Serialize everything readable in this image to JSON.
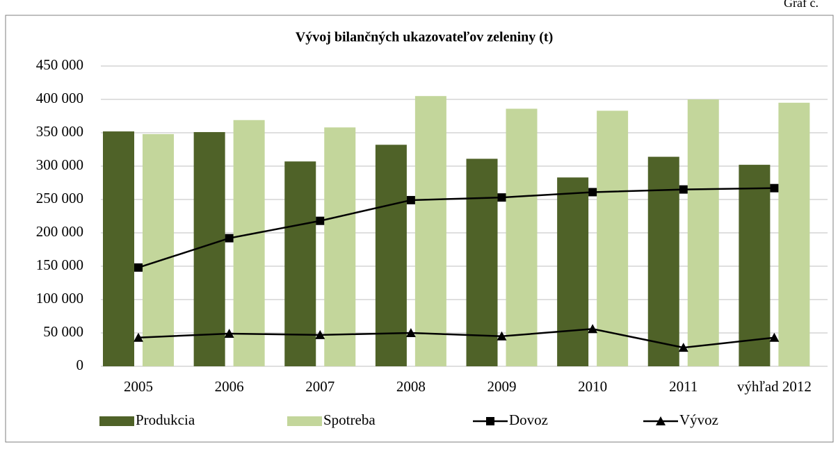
{
  "corner_label": "Graf č.",
  "chart_data": {
    "type": "bar",
    "title": "Vývoj bilančných ukazovateľov zeleniny (t)",
    "categories": [
      "2005",
      "2006",
      "2007",
      "2008",
      "2009",
      "2010",
      "2011",
      "výhľad 2012"
    ],
    "series": [
      {
        "name": "Produkcia",
        "type": "bar",
        "color": "#4f6228",
        "values": [
          352000,
          351000,
          307000,
          332000,
          311000,
          283000,
          314000,
          302000
        ]
      },
      {
        "name": "Spotreba",
        "type": "bar",
        "color": "#c3d69b",
        "values": [
          348000,
          369000,
          358000,
          405000,
          386000,
          383000,
          400000,
          395000
        ]
      },
      {
        "name": "Dovoz",
        "type": "line",
        "marker": "square",
        "color": "#000000",
        "values": [
          148000,
          192000,
          218000,
          249000,
          253000,
          261000,
          265000,
          267000
        ]
      },
      {
        "name": "Vývoz",
        "type": "line",
        "marker": "triangle",
        "color": "#000000",
        "values": [
          43000,
          49000,
          47000,
          50000,
          45000,
          56000,
          28000,
          43000
        ]
      }
    ],
    "ylim": [
      0,
      450000
    ],
    "yticks": [
      0,
      {
        "value": 50000,
        "label": "50 000"
      },
      {
        "value": 100000,
        "label": "100 000"
      },
      {
        "value": 150000,
        "label": "150 000"
      },
      {
        "value": 200000,
        "label": "200 000"
      },
      {
        "value": 250000,
        "label": "250 000"
      },
      {
        "value": 300000,
        "label": "300 000"
      },
      {
        "value": 350000,
        "label": "350 000"
      },
      {
        "value": 400000,
        "label": "400 000"
      },
      {
        "value": 450000,
        "label": "450 000"
      }
    ],
    "grid": true,
    "legend": "bottom"
  }
}
